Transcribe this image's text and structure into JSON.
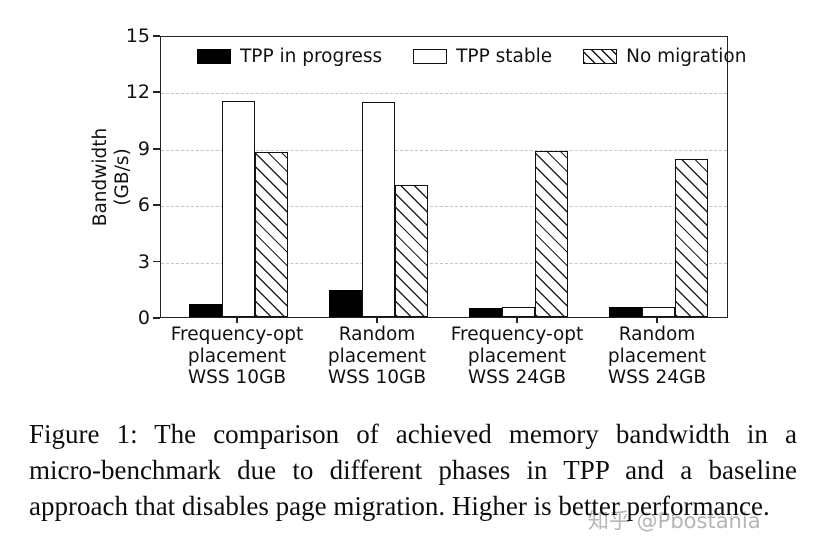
{
  "chart_data": {
    "type": "bar",
    "title": "",
    "ylabel_lines": [
      "Bandwidth",
      "(GB/s)"
    ],
    "ylabel": "Bandwidth (GB/s)",
    "xlabel": "",
    "ylim": [
      0,
      15
    ],
    "yticks": [
      0,
      3,
      6,
      9,
      12,
      15
    ],
    "grid": "horizontal-dashed",
    "legend_position": "top-inside",
    "categories": [
      "Frequency-opt placement WSS 10GB",
      "Random placement WSS 10GB",
      "Frequency-opt placement WSS 24GB",
      "Random placement WSS 24GB"
    ],
    "category_lines": [
      [
        "Frequency-opt",
        "placement",
        "WSS 10GB"
      ],
      [
        "Random",
        "placement",
        "WSS 10GB"
      ],
      [
        "Frequency-opt",
        "placement",
        "WSS 24GB"
      ],
      [
        "Random",
        "placement",
        "WSS 24GB"
      ]
    ],
    "series": [
      {
        "name": "TPP in progress",
        "style": "solid-black",
        "values": [
          0.7,
          1.45,
          0.5,
          0.55
        ]
      },
      {
        "name": "TPP stable",
        "style": "white-outline",
        "values": [
          11.5,
          11.45,
          0.55,
          0.55
        ]
      },
      {
        "name": "No migration",
        "style": "hatched",
        "values": [
          8.75,
          7.0,
          8.85,
          8.4
        ]
      }
    ]
  },
  "caption": {
    "lines": [
      "Figure 1: The comparison of achieved memory bandwidth in a",
      "micro-benchmark due to different phases in TPP and a baseline",
      "approach that disables page migration. Higher is better performance."
    ]
  },
  "watermark": "知乎 @Pbostania",
  "colors": {
    "bar_fill_black": "#000000",
    "bar_outline": "#111111",
    "grid": "#c4c4c4",
    "axis": "#222222",
    "text": "#111111",
    "watermark": "#b5b5b5",
    "background": "#ffffff"
  }
}
